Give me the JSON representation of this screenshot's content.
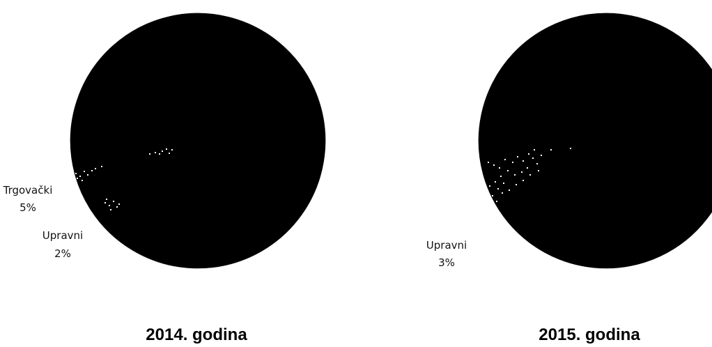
{
  "chart_data": [
    {
      "type": "pie",
      "title": "2014. godina",
      "slices": [
        {
          "label": "Trgovački",
          "value": 5,
          "display": "5%"
        },
        {
          "label": "Upravni",
          "value": 2,
          "display": "2%"
        },
        {
          "label": "",
          "value": 93,
          "display": ""
        }
      ]
    },
    {
      "type": "pie",
      "title": "2015. godina",
      "slices": [
        {
          "label": "Upravni",
          "value": 3,
          "display": "3%"
        },
        {
          "label": "",
          "value": 97,
          "display": ""
        }
      ]
    }
  ],
  "colors": {
    "slice_fill": "#000000",
    "background": "#ffffff",
    "text": "#111111"
  }
}
